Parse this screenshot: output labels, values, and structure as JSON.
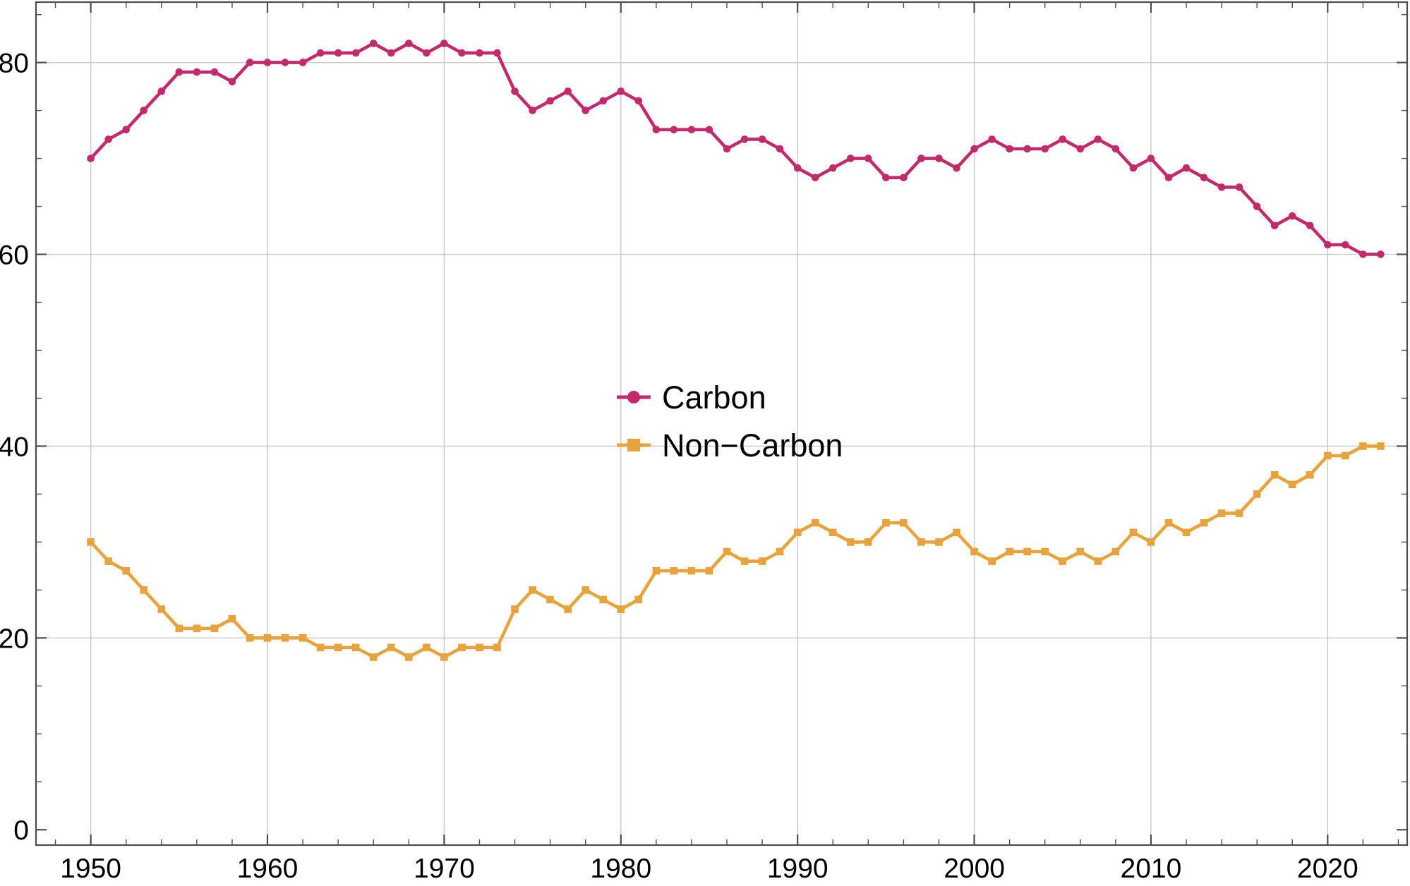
{
  "chart_data": {
    "type": "line",
    "title": "",
    "xlabel": "",
    "ylabel": "",
    "years": [
      1950,
      1951,
      1952,
      1953,
      1954,
      1955,
      1956,
      1957,
      1958,
      1959,
      1960,
      1961,
      1962,
      1963,
      1964,
      1965,
      1966,
      1967,
      1968,
      1969,
      1970,
      1971,
      1972,
      1973,
      1974,
      1975,
      1976,
      1977,
      1978,
      1979,
      1980,
      1981,
      1982,
      1983,
      1984,
      1985,
      1986,
      1987,
      1988,
      1989,
      1990,
      1991,
      1992,
      1993,
      1994,
      1995,
      1996,
      1997,
      1998,
      1999,
      2000,
      2001,
      2002,
      2003,
      2004,
      2005,
      2006,
      2007,
      2008,
      2009,
      2010,
      2011,
      2012,
      2013,
      2014,
      2015,
      2016,
      2017,
      2018,
      2019,
      2020,
      2021,
      2022,
      2023
    ],
    "series": [
      {
        "name": "Carbon",
        "slug": "carbon",
        "color": "#C32A6B",
        "marker": "circle",
        "values": [
          70,
          72,
          73,
          75,
          77,
          79,
          79,
          79,
          78,
          80,
          80,
          80,
          80,
          81,
          81,
          81,
          82,
          81,
          82,
          81,
          82,
          81,
          81,
          81,
          77,
          75,
          76,
          77,
          75,
          76,
          77,
          76,
          73,
          73,
          73,
          73,
          71,
          72,
          72,
          71,
          69,
          68,
          69,
          70,
          70,
          68,
          68,
          70,
          70,
          69,
          71,
          72,
          71,
          71,
          71,
          72,
          71,
          72,
          71,
          69,
          70,
          68,
          69,
          68,
          67,
          67,
          65,
          63,
          64,
          63,
          61,
          61,
          60,
          60
        ]
      },
      {
        "name": "Non−Carbon",
        "slug": "non-carbon",
        "color": "#E8A33C",
        "marker": "square",
        "values": [
          30,
          28,
          27,
          25,
          23,
          21,
          21,
          21,
          22,
          20,
          20,
          20,
          20,
          19,
          19,
          19,
          18,
          19,
          18,
          19,
          18,
          19,
          19,
          19,
          23,
          25,
          24,
          23,
          25,
          24,
          23,
          24,
          27,
          27,
          27,
          27,
          29,
          28,
          28,
          29,
          31,
          32,
          31,
          30,
          30,
          32,
          32,
          30,
          30,
          31,
          29,
          28,
          29,
          29,
          29,
          28,
          29,
          28,
          29,
          31,
          30,
          32,
          31,
          32,
          33,
          33,
          35,
          37,
          36,
          37,
          39,
          39,
          40,
          40
        ]
      }
    ],
    "xlim": [
      1946.9,
      2024.5
    ],
    "ylim": [
      -1.6,
      86.3
    ],
    "x_ticks": {
      "major": [
        1950,
        1960,
        1970,
        1980,
        1990,
        2000,
        2010,
        2020
      ],
      "major_labels": [
        "1950",
        "1960",
        "1970",
        "1980",
        "1990",
        "2000",
        "2010",
        "2020"
      ],
      "minor_step": 2,
      "minor_range": [
        1948,
        2024
      ]
    },
    "y_ticks": {
      "major": [
        0,
        20,
        40,
        60,
        80
      ],
      "major_labels": [
        "0",
        "20",
        "40",
        "60",
        "80"
      ],
      "minor_step": 5,
      "minor_range": [
        5,
        85
      ]
    },
    "grid": {
      "x": [
        1950,
        1960,
        1970,
        1980,
        1990,
        2000,
        2010,
        2020
      ],
      "y": [
        20,
        40,
        60,
        80
      ],
      "color": "#C8C8C8"
    },
    "frame_color": "#4D4D4D",
    "label_color": "#000000",
    "legend": {
      "position": "inside-center"
    }
  }
}
